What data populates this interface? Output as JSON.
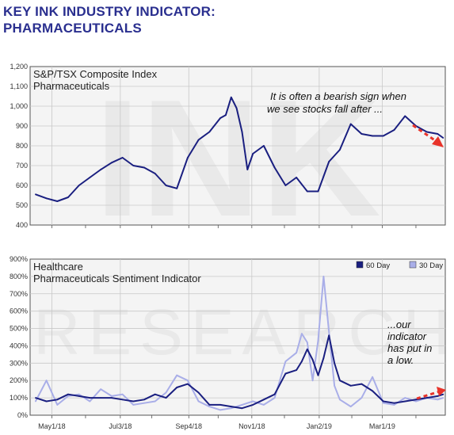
{
  "header": {
    "line1": "KEY INK INDUSTRY INDICATOR:",
    "line2": "PHARMACEUTICALS"
  },
  "colors": {
    "title": "#2a2f8f",
    "series60": "#1a1f80",
    "series30": "#a9aee8",
    "arrow": "#e8332a",
    "grid": "#c8c8c8",
    "plot_bg": "#f4f4f4"
  },
  "watermarks": {
    "top": "INK",
    "bottom": "RESEARCH"
  },
  "chart_data": [
    {
      "type": "line",
      "title": "S&P/TSX Composite Index",
      "subtitle": "Pharmaceuticals",
      "ylim": [
        400,
        1200
      ],
      "yticks": [
        "1,200",
        "1,100",
        "1,000",
        "900",
        "800",
        "700",
        "600",
        "500",
        "400"
      ],
      "grid": true,
      "annotation": [
        "It is often a bearish sign when",
        "we see stocks fall after ..."
      ],
      "x": [
        "2018-04-16",
        "2018-04-26",
        "2018-05-06",
        "2018-05-16",
        "2018-05-26",
        "2018-06-05",
        "2018-06-15",
        "2018-06-25",
        "2018-07-05",
        "2018-07-15",
        "2018-07-25",
        "2018-08-04",
        "2018-08-14",
        "2018-08-24",
        "2018-09-03",
        "2018-09-13",
        "2018-09-23",
        "2018-10-03",
        "2018-10-08",
        "2018-10-13",
        "2018-10-18",
        "2018-10-23",
        "2018-10-28",
        "2018-11-02",
        "2018-11-12",
        "2018-11-22",
        "2018-12-02",
        "2018-12-12",
        "2018-12-22",
        "2019-01-01",
        "2019-01-11",
        "2019-01-21",
        "2019-01-31",
        "2019-02-10",
        "2019-02-20",
        "2019-03-02",
        "2019-03-12",
        "2019-03-22",
        "2019-04-01",
        "2019-04-11",
        "2019-04-21",
        "2019-04-26"
      ],
      "series": [
        {
          "values": [
            555,
            535,
            520,
            540,
            600,
            640,
            680,
            715,
            740,
            700,
            690,
            660,
            600,
            585,
            740,
            830,
            870,
            940,
            955,
            1045,
            990,
            870,
            680,
            760,
            800,
            690,
            600,
            640,
            570,
            570,
            720,
            780,
            910,
            860,
            850,
            850,
            880,
            950,
            900,
            870,
            860,
            840
          ]
        }
      ]
    },
    {
      "type": "line",
      "title": "Healthcare",
      "subtitle": "Pharmaceuticals Sentiment Indicator",
      "ylim": [
        0,
        900
      ],
      "yticks": [
        "900%",
        "800%",
        "700%",
        "600%",
        "500%",
        "400%",
        "300%",
        "200%",
        "100%",
        "0%"
      ],
      "xticks": [
        "May1/18",
        "Jul3/18",
        "Sep4/18",
        "Nov1/18",
        "Jan2/19",
        "Mar1/19"
      ],
      "grid": true,
      "legend_position": "top-right",
      "annotation": [
        "...our",
        "indicator",
        "has put in",
        "a low."
      ],
      "x": [
        "2018-04-16",
        "2018-04-26",
        "2018-05-06",
        "2018-05-16",
        "2018-05-26",
        "2018-06-05",
        "2018-06-15",
        "2018-06-25",
        "2018-07-05",
        "2018-07-15",
        "2018-07-25",
        "2018-08-04",
        "2018-08-14",
        "2018-08-24",
        "2018-09-03",
        "2018-09-13",
        "2018-09-23",
        "2018-10-03",
        "2018-10-13",
        "2018-10-23",
        "2018-11-02",
        "2018-11-12",
        "2018-11-22",
        "2018-12-02",
        "2018-12-12",
        "2018-12-17",
        "2018-12-22",
        "2018-12-27",
        "2019-01-01",
        "2019-01-06",
        "2019-01-11",
        "2019-01-16",
        "2019-01-21",
        "2019-01-31",
        "2019-02-10",
        "2019-02-20",
        "2019-03-02",
        "2019-03-12",
        "2019-03-22",
        "2019-04-01",
        "2019-04-11",
        "2019-04-21",
        "2019-04-26"
      ],
      "series": [
        {
          "name": "60 Day",
          "values": [
            100,
            80,
            90,
            120,
            110,
            100,
            100,
            100,
            90,
            80,
            90,
            120,
            100,
            160,
            180,
            130,
            60,
            60,
            50,
            40,
            60,
            90,
            120,
            240,
            260,
            310,
            380,
            320,
            230,
            330,
            460,
            300,
            200,
            170,
            180,
            140,
            80,
            70,
            80,
            90,
            100,
            110,
            120
          ]
        },
        {
          "name": "30 Day",
          "values": [
            80,
            200,
            60,
            110,
            120,
            80,
            150,
            110,
            120,
            60,
            70,
            80,
            130,
            230,
            200,
            80,
            50,
            30,
            40,
            60,
            80,
            60,
            100,
            310,
            360,
            470,
            420,
            200,
            430,
            800,
            480,
            170,
            90,
            50,
            100,
            220,
            70,
            60,
            100,
            80,
            100,
            90,
            100
          ]
        }
      ]
    }
  ]
}
